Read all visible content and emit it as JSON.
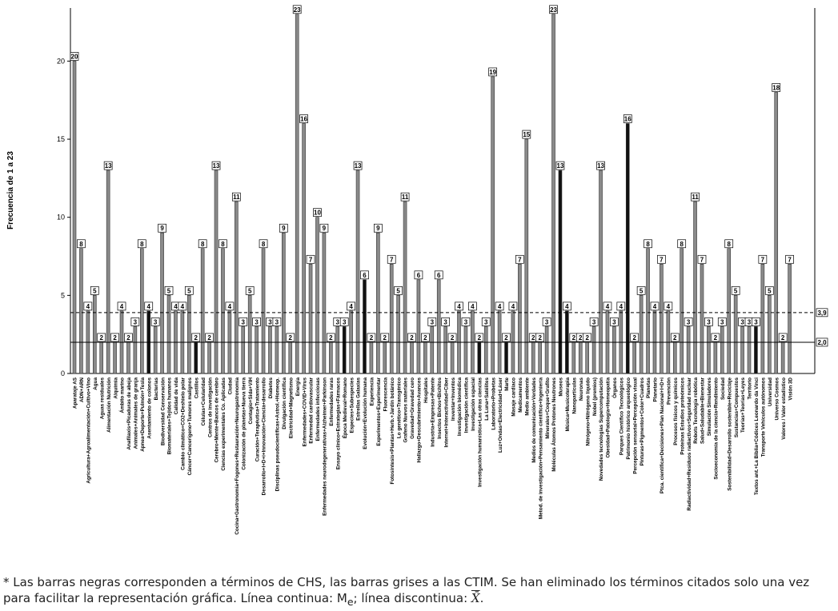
{
  "chart_data": {
    "type": "bar",
    "y_label": "Frecuencia de 1 a 23",
    "categories": [
      "Aparataje AS",
      "ADN+ARN",
      "Agricultura+Agroalimentación+Cultivo+Vino",
      "Agua",
      "Aguas residuales",
      "Alimentación Nutrición",
      "Alquimia",
      "Ámbito marino",
      "Anafilaxis+Picaduras de abeja",
      "Animales+Animales de granja",
      "Apnea+Deporte+Pulmón+Tesla",
      "Asentamiento de colonos",
      "Bacterias",
      "Biodiversidad Conservación",
      "Biomateriales+Tejidos humanos",
      "Calidad de vida",
      "Cambio climático+CO2+Deshielo polar",
      "Cáncer+Cancerígeno+Tumores malignos",
      "Castillos",
      "Células+Celularidad",
      "Centros de investigación",
      "Cerebro+Mente+Bancos de cerebro",
      "Ciencias experimentales Co. Aplicadas",
      "Ciudad",
      "Cocina+Gastronomía+Fogones+Restauración+Neurogastronomía",
      "Colonización de planetas+Nueva tierra",
      "Contagio+Sida+VIH",
      "Curación+Terapéutica+Tratamiento",
      "Desarrollo+I+D+i+Innovación+Ciencia+desarrollo",
      "Diabetes",
      "Disciplinas pseudocientíficas+Astrol.+Homeop.",
      "Divulgación científica",
      "Electricidad+Magnetismo",
      "Energía",
      "Enfermedades+COVID+Virus",
      "Enfermedad cardiovascular",
      "Enfermedades infecciosas",
      "Enfermedades neurodegenerativas+Alzheimer+Parkinson",
      "Enfermedades raras",
      "Ensayo clínico+Estrategias+Fármacos",
      "Época Medieval+Romano",
      "Especies+Subespecies",
      "Estrellas Galaxias",
      "Evolución+Evolución humana",
      "Experiencia",
      "Experimentos+Experimentar",
      "Fluorescencia",
      "Fotosíntesis+Plantas+Herb.+Jardín botánico",
      "Lo genético+Transgénico",
      "Grafeno Nuevos materiales",
      "Gravedad+Gravedad cero",
      "Hallazgo+Descubrimiento+Avances",
      "Hospitales",
      "Industria+Empresas+Patente",
      "Insectos Bichos+Bichitos",
      "Internet+Interactividad+Ciber",
      "Inventar+Inventos",
      "Investigación biomédica",
      "Investigación científica",
      "Investigación espacial",
      "Investigación humanística+Las otras ciencias",
      "La Luna+Satélites",
      "Laboratorio+Probetas",
      "Luz+Ondas+Electricidad+Láser",
      "Marte",
      "Masaje cardíaco",
      "Medicamentos",
      "Medio ambiente",
      "Medios de comunicación+Verdades",
      "Metod. de investigación+Pensamiento científico+Ingeniería",
      "Minerales+Coque+Grafito",
      "Moléculas Átomos Protones Neutrones",
      "Museos",
      "Música+Musicoterapia",
      "Nanopartículas",
      "Neuronas",
      "Nitrógeno+Nitrógeno líquido",
      "Nobel (premios)",
      "Novedades tecnologías Supercomputación",
      "Obesidad+Patología+Homeopatía",
      "Órganos",
      "Parques Científico Tecnológicos",
      "Patrimonio histórico arqueológico",
      "Percepción sensorial+Percepción visual",
      "Pinturas+Pigmentos+Color+Cuadros",
      "Planetas",
      "Planetario",
      "Ptca. científica+Decisiones+Plan Nacional+I+D+i",
      "Prevención",
      "Procesos físicos y químicos",
      "Proteínas Estudios proteómicos",
      "Radiactividad+Residuos radiactivos+Seguridad nuclear",
      "Robots Tecnología robótica",
      "Salud+Saludable+Bienestar",
      "Simulación Simuladores",
      "Socioeconomía de la ciencia+Rendimiento",
      "Sociedad",
      "Sostenibilidad+Desarrollo sostenible+Reciclaje",
      "Sustancias+Compuestos",
      "Teorías+Teorías+Leyes",
      "Territorio",
      "Textos ant.+La Biblia+Códices Leonardo da Vinci",
      "Transporte Vehículos autónomos",
      "Universidad",
      "Universo Cosmos",
      "Valores / Valor estadístico",
      "Visión 3D"
    ],
    "values": [
      20,
      8,
      4,
      5,
      2,
      13,
      2,
      4,
      2,
      3,
      8,
      4,
      3,
      9,
      5,
      4,
      4,
      5,
      2,
      8,
      2,
      13,
      8,
      4,
      11,
      3,
      5,
      3,
      8,
      3,
      3,
      9,
      2,
      23,
      16,
      7,
      10,
      9,
      2,
      3,
      3,
      4,
      13,
      6,
      2,
      9,
      2,
      7,
      5,
      11,
      2,
      6,
      2,
      3,
      6,
      3,
      2,
      4,
      3,
      4,
      2,
      3,
      19,
      4,
      2,
      4,
      7,
      15,
      2,
      2,
      3,
      23,
      13,
      4,
      2,
      2,
      2,
      3,
      13,
      4,
      3,
      4,
      16,
      2,
      5,
      8,
      4,
      7,
      4,
      2,
      8,
      3,
      11,
      7,
      3,
      2,
      3,
      8,
      5,
      3,
      3,
      3,
      7,
      5,
      18,
      2,
      7
    ],
    "colors": [
      "#8a8a8a",
      "#8a8a8a",
      "#8a8a8a",
      "#8a8a8a",
      "#8a8a8a",
      "#8a8a8a",
      "#8a8a8a",
      "#8a8a8a",
      "#8a8a8a",
      "#8a8a8a",
      "#8a8a8a",
      "#111111",
      "#8a8a8a",
      "#8a8a8a",
      "#8a8a8a",
      "#8a8a8a",
      "#8a8a8a",
      "#8a8a8a",
      "#111111",
      "#8a8a8a",
      "#8a8a8a",
      "#8a8a8a",
      "#8a8a8a",
      "#8a8a8a",
      "#8a8a8a",
      "#8a8a8a",
      "#8a8a8a",
      "#8a8a8a",
      "#8a8a8a",
      "#8a8a8a",
      "#8a8a8a",
      "#8a8a8a",
      "#8a8a8a",
      "#8a8a8a",
      "#8a8a8a",
      "#8a8a8a",
      "#8a8a8a",
      "#8a8a8a",
      "#8a8a8a",
      "#8a8a8a",
      "#111111",
      "#8a8a8a",
      "#8a8a8a",
      "#111111",
      "#8a8a8a",
      "#8a8a8a",
      "#8a8a8a",
      "#8a8a8a",
      "#8a8a8a",
      "#8a8a8a",
      "#8a8a8a",
      "#8a8a8a",
      "#8a8a8a",
      "#8a8a8a",
      "#8a8a8a",
      "#8a8a8a",
      "#8a8a8a",
      "#8a8a8a",
      "#8a8a8a",
      "#8a8a8a",
      "#111111",
      "#8a8a8a",
      "#8a8a8a",
      "#8a8a8a",
      "#111111",
      "#8a8a8a",
      "#8a8a8a",
      "#8a8a8a",
      "#8a8a8a",
      "#8a8a8a",
      "#8a8a8a",
      "#8a8a8a",
      "#111111",
      "#111111",
      "#8a8a8a",
      "#8a8a8a",
      "#8a8a8a",
      "#8a8a8a",
      "#8a8a8a",
      "#8a8a8a",
      "#8a8a8a",
      "#8a8a8a",
      "#111111",
      "#8a8a8a",
      "#8a8a8a",
      "#8a8a8a",
      "#8a8a8a",
      "#8a8a8a",
      "#8a8a8a",
      "#8a8a8a",
      "#8a8a8a",
      "#8a8a8a",
      "#8a8a8a",
      "#8a8a8a",
      "#8a8a8a",
      "#8a8a8a",
      "#8a8a8a",
      "#8a8a8a",
      "#8a8a8a",
      "#8a8a8a",
      "#8a8a8a",
      "#111111",
      "#8a8a8a",
      "#8a8a8a",
      "#8a8a8a",
      "#8a8a8a",
      "#8a8a8a"
    ],
    "ylim": [
      0,
      23.4
    ],
    "yticks": [
      0,
      5,
      10,
      15,
      20
    ],
    "reference_lines": [
      {
        "value": 3.9,
        "label": "3,9",
        "style": "dashed"
      },
      {
        "value": 2.0,
        "label": "2,0",
        "style": "solid"
      }
    ],
    "note": {
      "text1": "* Las barras negras corresponden a términos de CHS, las barras grises a las CTIM. Se han eliminado los términos citados solo una vez para facilitar la representación gráfica. Línea continua: M",
      "sub": "e",
      "text2": "; línea discontinua: ",
      "xbar": "X̄",
      "end": "."
    }
  }
}
